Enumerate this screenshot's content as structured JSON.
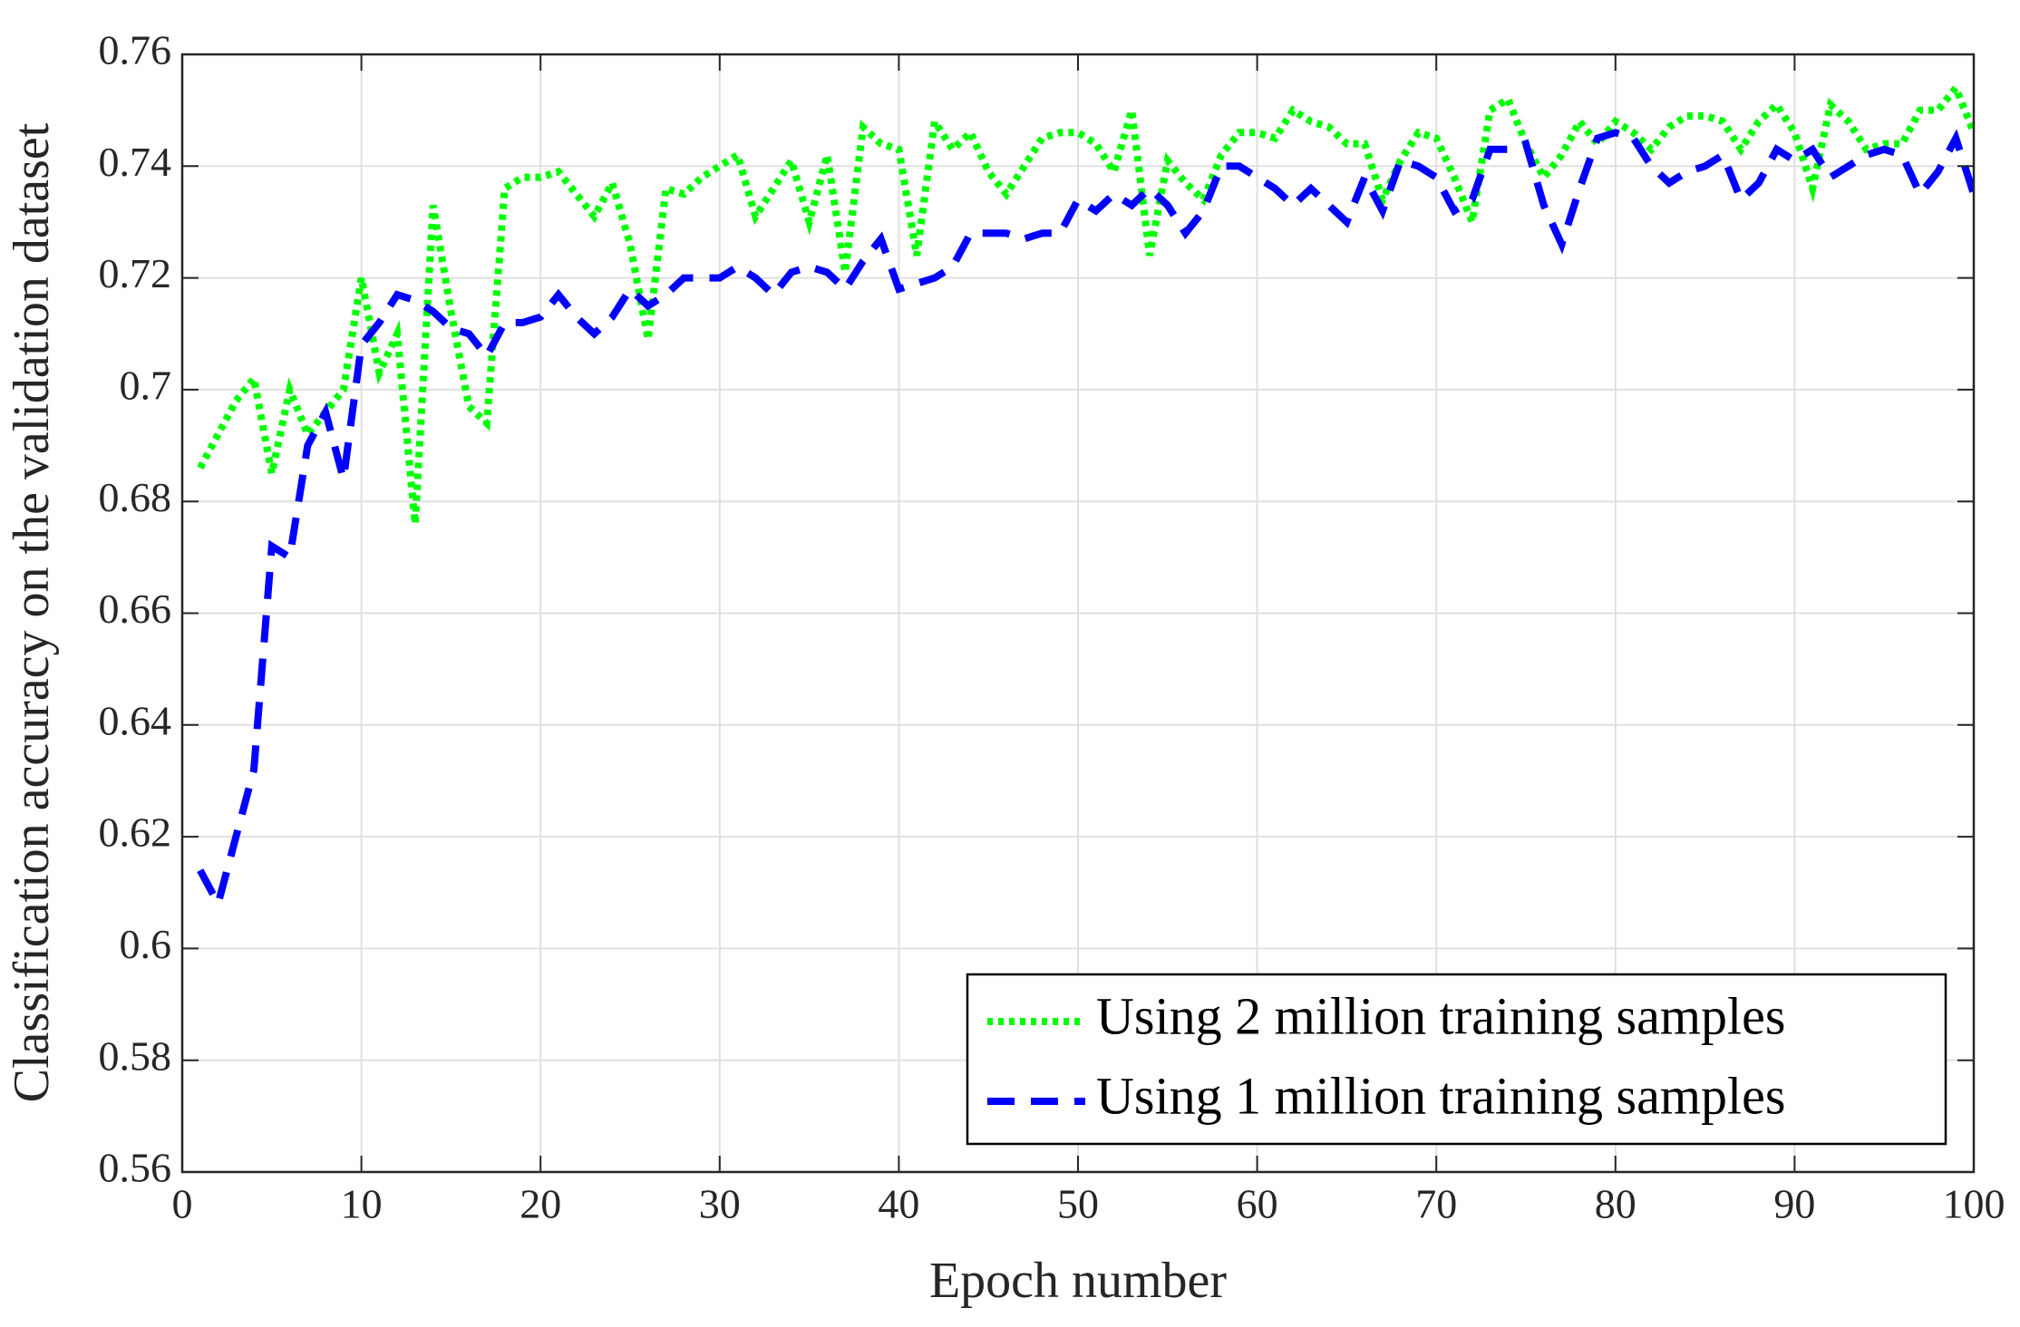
{
  "chart_data": {
    "type": "line",
    "xlabel": "Epoch number",
    "ylabel": "Classification accuracy on the validation dataset",
    "x": [
      1,
      2,
      3,
      4,
      5,
      6,
      7,
      8,
      9,
      10,
      11,
      12,
      13,
      14,
      15,
      16,
      17,
      18,
      19,
      20,
      21,
      22,
      23,
      24,
      25,
      26,
      27,
      28,
      29,
      30,
      31,
      32,
      33,
      34,
      35,
      36,
      37,
      38,
      39,
      40,
      41,
      42,
      43,
      44,
      45,
      46,
      47,
      48,
      49,
      50,
      51,
      52,
      53,
      54,
      55,
      56,
      57,
      58,
      59,
      60,
      61,
      62,
      63,
      64,
      65,
      66,
      67,
      68,
      69,
      70,
      71,
      72,
      73,
      74,
      75,
      76,
      77,
      78,
      79,
      80,
      81,
      82,
      83,
      84,
      85,
      86,
      87,
      88,
      89,
      90,
      91,
      92,
      93,
      94,
      95,
      96,
      97,
      98,
      99,
      100
    ],
    "series": [
      {
        "name": "Using 2 million training samples",
        "color": "#00ff00",
        "style": "dotted",
        "values": [
          0.686,
          0.692,
          0.698,
          0.702,
          0.685,
          0.7,
          0.692,
          0.696,
          0.7,
          0.72,
          0.703,
          0.71,
          0.676,
          0.733,
          0.714,
          0.697,
          0.694,
          0.736,
          0.738,
          0.738,
          0.739,
          0.735,
          0.731,
          0.737,
          0.726,
          0.709,
          0.736,
          0.735,
          0.738,
          0.74,
          0.742,
          0.731,
          0.736,
          0.741,
          0.73,
          0.742,
          0.721,
          0.747,
          0.744,
          0.743,
          0.724,
          0.748,
          0.743,
          0.746,
          0.739,
          0.735,
          0.74,
          0.745,
          0.746,
          0.746,
          0.744,
          0.739,
          0.75,
          0.724,
          0.741,
          0.737,
          0.734,
          0.742,
          0.746,
          0.746,
          0.745,
          0.75,
          0.748,
          0.747,
          0.744,
          0.744,
          0.734,
          0.741,
          0.746,
          0.745,
          0.738,
          0.73,
          0.75,
          0.752,
          0.744,
          0.738,
          0.742,
          0.748,
          0.744,
          0.748,
          0.746,
          0.743,
          0.747,
          0.749,
          0.749,
          0.748,
          0.743,
          0.748,
          0.751,
          0.746,
          0.736,
          0.751,
          0.748,
          0.743,
          0.744,
          0.744,
          0.75,
          0.75,
          0.754,
          0.746
        ]
      },
      {
        "name": "Using 1 million training samples",
        "color": "#0000ff",
        "style": "dashed",
        "values": [
          0.614,
          0.608,
          0.62,
          0.632,
          0.672,
          0.67,
          0.69,
          0.696,
          0.684,
          0.708,
          0.712,
          0.717,
          0.716,
          0.714,
          0.711,
          0.71,
          0.706,
          0.712,
          0.712,
          0.713,
          0.717,
          0.713,
          0.71,
          0.713,
          0.718,
          0.715,
          0.717,
          0.72,
          0.72,
          0.72,
          0.722,
          0.72,
          0.717,
          0.721,
          0.722,
          0.721,
          0.718,
          0.723,
          0.727,
          0.718,
          0.719,
          0.72,
          0.722,
          0.728,
          0.728,
          0.728,
          0.727,
          0.728,
          0.728,
          0.734,
          0.732,
          0.735,
          0.733,
          0.736,
          0.733,
          0.728,
          0.732,
          0.74,
          0.74,
          0.738,
          0.736,
          0.733,
          0.736,
          0.733,
          0.73,
          0.738,
          0.732,
          0.741,
          0.74,
          0.738,
          0.732,
          0.734,
          0.743,
          0.743,
          0.744,
          0.733,
          0.726,
          0.736,
          0.745,
          0.746,
          0.745,
          0.74,
          0.737,
          0.739,
          0.74,
          0.742,
          0.734,
          0.737,
          0.743,
          0.741,
          0.743,
          0.738,
          0.74,
          0.742,
          0.743,
          0.742,
          0.735,
          0.739,
          0.745,
          0.735
        ]
      }
    ],
    "xlim": [
      0,
      100
    ],
    "xticks": [
      0,
      10,
      20,
      30,
      40,
      50,
      60,
      70,
      80,
      90,
      100
    ],
    "ylim": [
      0.56,
      0.76
    ],
    "yticks": [
      0.56,
      0.58,
      0.6,
      0.62,
      0.64,
      0.66,
      0.68,
      0.7,
      0.72,
      0.74,
      0.76
    ],
    "grid": true,
    "legend": "lower right"
  }
}
